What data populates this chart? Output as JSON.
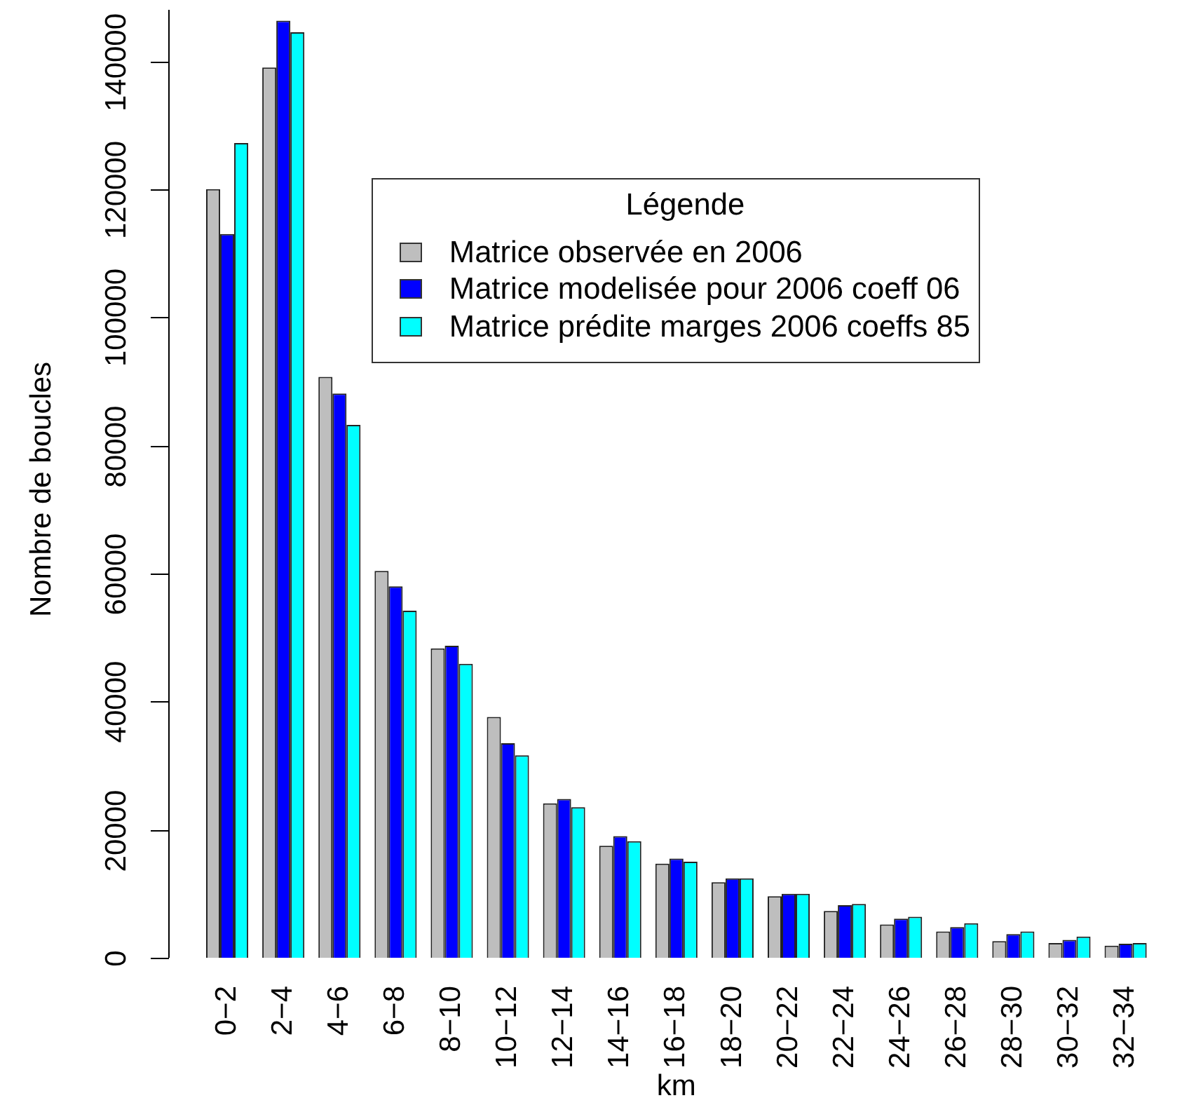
{
  "chart_data": {
    "type": "bar",
    "xlabel": "km",
    "ylabel": "Nombre de boucles",
    "legend_title": "Légende",
    "legend": "top",
    "categories": [
      "0−2",
      "2−4",
      "4−6",
      "6−8",
      "8−10",
      "10−12",
      "12−14",
      "14−16",
      "16−18",
      "18−20",
      "20−22",
      "22−24",
      "24−26",
      "26−28",
      "28−30",
      "30−32",
      "32−34"
    ],
    "series": [
      {
        "name": "Matrice observée en 2006",
        "color": "#bebebe",
        "values": [
          120000,
          139000,
          90700,
          60400,
          48300,
          37600,
          24100,
          17500,
          14700,
          11800,
          9600,
          7300,
          5200,
          4100,
          2600,
          2300,
          1900
        ]
      },
      {
        "name": "Matrice modelisée pour 2006 coeff 06",
        "color": "#0000ff",
        "values": [
          113000,
          146300,
          88100,
          58000,
          48700,
          33500,
          24800,
          19000,
          15500,
          12400,
          10000,
          8200,
          6100,
          4800,
          3700,
          2800,
          2200
        ]
      },
      {
        "name": "Matrice prédite marges 2006 coeffs 85",
        "color": "#00ffff",
        "values": [
          127200,
          144500,
          83200,
          54200,
          45900,
          31600,
          23500,
          18200,
          15000,
          12400,
          10000,
          8400,
          6400,
          5400,
          4100,
          3300,
          2300
        ]
      }
    ],
    "ylim": [
      0,
      148000
    ],
    "yticks": [
      0,
      20000,
      40000,
      60000,
      80000,
      100000,
      120000,
      140000
    ]
  }
}
